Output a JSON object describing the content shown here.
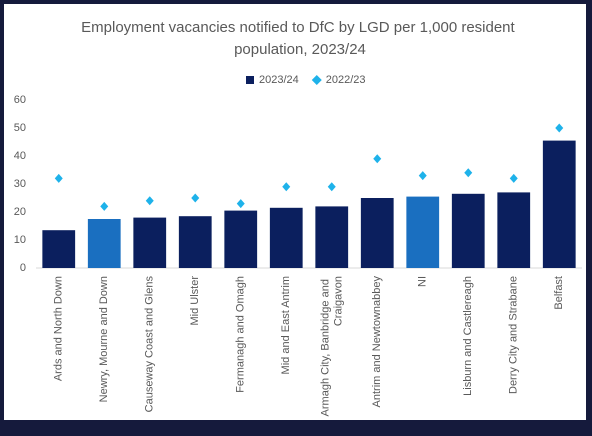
{
  "chart_data": {
    "type": "bar",
    "title": "Employment vacancies notified to DfC by LGD per 1,000 resident population, 2023/24",
    "categories": [
      "Ards and North Down",
      "Newry, Mourne and Down",
      "Causeway Coast and Glens",
      "Mid Ulster",
      "Fermanagh and Omagh",
      "Mid and East Antrim",
      "Armagh City, Banbridge and Craigavon",
      "Antrim and Newtownabbey",
      "NI",
      "Lisburn and Castlereagh",
      "Derry City and Strabane",
      "Belfast"
    ],
    "series": [
      {
        "name": "2023/24",
        "type": "bar",
        "color": "#0b1f5e",
        "colors": [
          "#0b1f5e",
          "#1a6fc0",
          "#0b1f5e",
          "#0b1f5e",
          "#0b1f5e",
          "#0b1f5e",
          "#0b1f5e",
          "#0b1f5e",
          "#1a6fc0",
          "#0b1f5e",
          "#0b1f5e",
          "#0b1f5e"
        ],
        "values": [
          13.5,
          17.5,
          18,
          18.5,
          20.5,
          21.5,
          22,
          25,
          25.5,
          26.5,
          27,
          45.5
        ]
      },
      {
        "name": "2022/23",
        "type": "marker",
        "color": "#1eb2ea",
        "values": [
          32,
          22,
          24,
          25,
          23,
          29,
          29,
          39,
          33,
          34,
          32,
          50
        ]
      }
    ],
    "ylim": [
      0,
      60
    ],
    "yticks": [
      0,
      10,
      20,
      30,
      40,
      50,
      60
    ],
    "grid": false,
    "legend": "top"
  }
}
